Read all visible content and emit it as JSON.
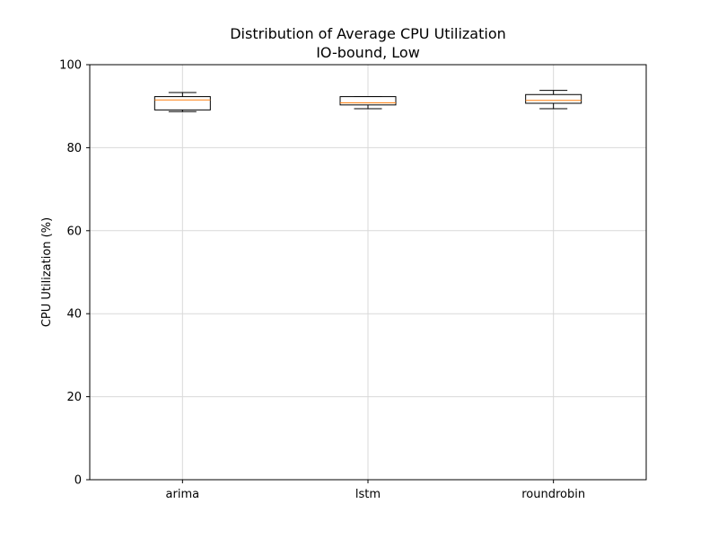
{
  "chart_data": {
    "type": "box",
    "title": "Distribution of Average CPU Utilization",
    "subtitle": "IO-bound, Low",
    "xlabel": "",
    "ylabel": "CPU Utilization (%)",
    "ylim": [
      0,
      100
    ],
    "yticks": [
      0,
      20,
      40,
      60,
      80,
      100
    ],
    "grid": true,
    "categories": [
      "arima",
      "lstm",
      "roundrobin"
    ],
    "boxes": [
      {
        "category": "arima",
        "whisker_low": 88.7,
        "q1": 89.1,
        "median": 91.5,
        "q3": 92.3,
        "whisker_high": 93.3
      },
      {
        "category": "lstm",
        "whisker_low": 89.4,
        "q1": 90.3,
        "median": 90.8,
        "q3": 92.3,
        "whisker_high": 92.3
      },
      {
        "category": "roundrobin",
        "whisker_low": 89.4,
        "q1": 90.7,
        "median": 91.4,
        "q3": 92.8,
        "whisker_high": 93.8
      }
    ],
    "colors": {
      "box": "#000000",
      "median": "#ff7f0e",
      "grid": "#d9d9d9"
    }
  }
}
